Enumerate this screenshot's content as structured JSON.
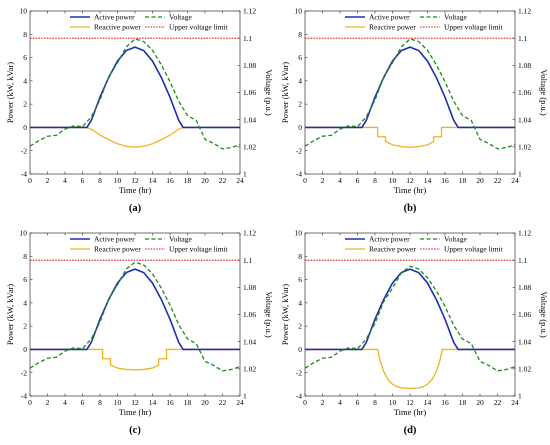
{
  "figure": {
    "panels": [
      {
        "caption": "(a)"
      },
      {
        "caption": "(b)"
      },
      {
        "caption": "(c)"
      },
      {
        "caption": "(d)"
      }
    ]
  },
  "colors": {
    "active": "#1f2fb0",
    "voltage": "#1d8a14",
    "reactive": "#f0b323",
    "limit": "#e01b1b"
  },
  "chart_data": [
    {
      "type": "line",
      "xlabel": "Time (hr)",
      "ylabel": "Power (kW, kVar)",
      "y2label": "Voltage (p.u.)",
      "xlim": [
        0,
        24
      ],
      "ylim": [
        -4,
        10
      ],
      "y2lim": [
        1.0,
        1.12
      ],
      "x_ticks": [
        "0",
        "2",
        "4",
        "6",
        "8",
        "10",
        "12",
        "14",
        "16",
        "18",
        "20",
        "22",
        "24"
      ],
      "y_ticks": [
        "-4",
        "-2",
        "0",
        "2",
        "4",
        "6",
        "8",
        "10"
      ],
      "y2_ticks": [
        "1",
        "1.02",
        "1.04",
        "1.06",
        "1.08",
        "1.1",
        "1.12"
      ],
      "legend": [
        "Active power",
        "Voltage",
        "Reactive power",
        "Upper voltage limit"
      ],
      "series": [
        {
          "name": "Active power",
          "axis": "left",
          "x": [
            0,
            6.5,
            7,
            8,
            9,
            10,
            11,
            12,
            13,
            14,
            15,
            16,
            17,
            17.5,
            24
          ],
          "y": [
            0,
            0,
            0.6,
            2.6,
            4.3,
            5.7,
            6.6,
            6.9,
            6.6,
            5.7,
            4.3,
            2.6,
            0.6,
            0,
            0
          ]
        },
        {
          "name": "Reactive power",
          "axis": "left",
          "x": [
            0,
            6.5,
            7,
            8,
            9,
            10,
            11,
            12,
            13,
            14,
            15,
            16,
            17,
            17.5,
            24
          ],
          "y": [
            0,
            0,
            -0.15,
            -0.65,
            -1.05,
            -1.4,
            -1.62,
            -1.7,
            -1.62,
            -1.4,
            -1.05,
            -0.65,
            -0.15,
            0,
            0
          ]
        },
        {
          "name": "Voltage",
          "axis": "right",
          "x": [
            0,
            1,
            2,
            3,
            4,
            5,
            6,
            7,
            8,
            9,
            10,
            11,
            12,
            13,
            14,
            15,
            16,
            17,
            18,
            19,
            20,
            21,
            22,
            23,
            24
          ],
          "y": [
            1.0205,
            1.0245,
            1.0278,
            1.0285,
            1.033,
            1.0355,
            1.0348,
            1.042,
            1.0545,
            1.0715,
            1.082,
            1.0935,
            1.0995,
            1.0975,
            1.091,
            1.0805,
            1.068,
            1.0535,
            1.043,
            1.0395,
            1.0255,
            1.0225,
            1.0185,
            1.0195,
            1.0215
          ]
        },
        {
          "name": "Upper voltage limit",
          "axis": "right",
          "x": [
            0,
            24
          ],
          "y": [
            1.1,
            1.1
          ]
        }
      ]
    },
    {
      "type": "line",
      "xlabel": "Time (hr)",
      "ylabel": "Power (kW, kVar)",
      "y2label": "Voltage (p.u.)",
      "xlim": [
        0,
        24
      ],
      "ylim": [
        -4,
        10
      ],
      "y2lim": [
        1.0,
        1.12
      ],
      "x_ticks": [
        "0",
        "2",
        "4",
        "6",
        "8",
        "10",
        "12",
        "14",
        "16",
        "18",
        "20",
        "22",
        "24"
      ],
      "y_ticks": [
        "-4",
        "-2",
        "0",
        "2",
        "4",
        "6",
        "8",
        "10"
      ],
      "y2_ticks": [
        "1",
        "1.02",
        "1.04",
        "1.06",
        "1.08",
        "1.1",
        "1.12"
      ],
      "legend": [
        "Active power",
        "Voltage",
        "Reactive power",
        "Upper voltage limit"
      ],
      "series": [
        {
          "name": "Active power",
          "axis": "left",
          "x": [
            0,
            6.5,
            7,
            8,
            9,
            10,
            11,
            12,
            13,
            14,
            15,
            16,
            17,
            17.5,
            24
          ],
          "y": [
            0,
            0,
            0.6,
            2.6,
            4.3,
            5.7,
            6.6,
            6.9,
            6.6,
            5.7,
            4.3,
            2.6,
            0.6,
            0,
            0
          ]
        },
        {
          "name": "Reactive power",
          "axis": "left",
          "x": [
            0,
            8.3,
            8.3,
            9.2,
            9.2,
            10,
            11,
            12,
            13,
            14,
            14.7,
            14.7,
            15.6,
            15.6,
            24
          ],
          "y": [
            0,
            0,
            -0.8,
            -0.8,
            -1.2,
            -1.5,
            -1.65,
            -1.7,
            -1.65,
            -1.5,
            -1.2,
            -0.8,
            -0.8,
            0,
            0
          ]
        },
        {
          "name": "Voltage",
          "axis": "right",
          "x": [
            0,
            1,
            2,
            3,
            4,
            5,
            6,
            7,
            8,
            9,
            10,
            11,
            12,
            13,
            14,
            15,
            16,
            17,
            18,
            19,
            20,
            21,
            22,
            23,
            24
          ],
          "y": [
            1.0205,
            1.0245,
            1.0278,
            1.0285,
            1.033,
            1.0355,
            1.0348,
            1.042,
            1.0545,
            1.0715,
            1.082,
            1.0935,
            1.0995,
            1.0975,
            1.091,
            1.0805,
            1.068,
            1.0535,
            1.043,
            1.0395,
            1.0255,
            1.0225,
            1.0185,
            1.0195,
            1.0215
          ]
        },
        {
          "name": "Upper voltage limit",
          "axis": "right",
          "x": [
            0,
            24
          ],
          "y": [
            1.1,
            1.1
          ]
        }
      ]
    },
    {
      "type": "line",
      "xlabel": "Time (hr)",
      "ylabel": "Power (kW, kVar)",
      "y2label": "Voltage (p.u.)",
      "xlim": [
        0,
        24
      ],
      "ylim": [
        -4,
        10
      ],
      "y2lim": [
        1.0,
        1.12
      ],
      "x_ticks": [
        "0",
        "2",
        "4",
        "6",
        "8",
        "10",
        "12",
        "14",
        "16",
        "18",
        "20",
        "22",
        "24"
      ],
      "y_ticks": [
        "-4",
        "-2",
        "0",
        "2",
        "4",
        "6",
        "8",
        "10"
      ],
      "y2_ticks": [
        "1",
        "1.02",
        "1.04",
        "1.06",
        "1.08",
        "1.1",
        "1.12"
      ],
      "legend": [
        "Active power",
        "Voltage",
        "Reactive power",
        "Upper voltage limit"
      ],
      "series": [
        {
          "name": "Active power",
          "axis": "left",
          "x": [
            0,
            6.5,
            7,
            8,
            9,
            10,
            11,
            12,
            13,
            14,
            15,
            16,
            17,
            17.5,
            24
          ],
          "y": [
            0,
            0,
            0.6,
            2.6,
            4.3,
            5.7,
            6.6,
            6.9,
            6.6,
            5.7,
            4.3,
            2.6,
            0.6,
            0,
            0
          ]
        },
        {
          "name": "Reactive power",
          "axis": "left",
          "x": [
            0,
            8.3,
            8.3,
            9.2,
            9.2,
            10,
            11,
            12,
            13,
            14,
            14.7,
            14.7,
            15.6,
            15.6,
            24
          ],
          "y": [
            0,
            0,
            -0.8,
            -0.8,
            -1.35,
            -1.6,
            -1.72,
            -1.75,
            -1.72,
            -1.6,
            -1.35,
            -0.8,
            -0.8,
            0,
            0
          ]
        },
        {
          "name": "Voltage",
          "axis": "right",
          "x": [
            0,
            1,
            2,
            3,
            4,
            5,
            6,
            7,
            8,
            9,
            10,
            11,
            12,
            13,
            14,
            15,
            16,
            17,
            18,
            19,
            20,
            21,
            22,
            23,
            24
          ],
          "y": [
            1.0205,
            1.0245,
            1.0278,
            1.0285,
            1.033,
            1.0355,
            1.0348,
            1.042,
            1.0545,
            1.0715,
            1.082,
            1.0935,
            1.0985,
            1.0965,
            1.09,
            1.0795,
            1.067,
            1.0525,
            1.042,
            1.0385,
            1.0255,
            1.0225,
            1.0185,
            1.0195,
            1.0215
          ]
        },
        {
          "name": "Upper voltage limit",
          "axis": "right",
          "x": [
            0,
            24
          ],
          "y": [
            1.1,
            1.1
          ]
        }
      ]
    },
    {
      "type": "line",
      "xlabel": "Time (hr)",
      "ylabel": "Power (kW, kVar)",
      "y2label": "Voltage (p.u.)",
      "xlim": [
        0,
        24
      ],
      "ylim": [
        -4,
        10
      ],
      "y2lim": [
        1.0,
        1.12
      ],
      "x_ticks": [
        "0",
        "2",
        "4",
        "6",
        "8",
        "10",
        "12",
        "14",
        "16",
        "18",
        "20",
        "22",
        "24"
      ],
      "y_ticks": [
        "-4",
        "-2",
        "0",
        "2",
        "4",
        "6",
        "8",
        "10"
      ],
      "y2_ticks": [
        "1",
        "1.02",
        "1.04",
        "1.06",
        "1.08",
        "1.1",
        "1.12"
      ],
      "legend": [
        "Active power",
        "Voltage",
        "Reactive power",
        "Upper voltage limit"
      ],
      "series": [
        {
          "name": "Active power",
          "axis": "left",
          "x": [
            0,
            6.5,
            7,
            8,
            9,
            10,
            11,
            12,
            13,
            14,
            15,
            16,
            17,
            17.5,
            24
          ],
          "y": [
            0,
            0,
            0.6,
            2.6,
            4.3,
            5.7,
            6.6,
            6.9,
            6.6,
            5.7,
            4.3,
            2.6,
            0.6,
            0,
            0
          ]
        },
        {
          "name": "Reactive power",
          "axis": "left",
          "x": [
            0,
            8.3,
            8.6,
            9,
            9.5,
            10,
            10.5,
            11,
            12,
            13,
            13.5,
            14,
            14.5,
            15,
            15.4,
            15.7,
            24
          ],
          "y": [
            0,
            0,
            -1.0,
            -1.9,
            -2.6,
            -3.0,
            -3.2,
            -3.3,
            -3.35,
            -3.3,
            -3.2,
            -3.0,
            -2.6,
            -1.9,
            -1.0,
            0,
            0
          ]
        },
        {
          "name": "Voltage",
          "axis": "right",
          "x": [
            0,
            1,
            2,
            3,
            4,
            5,
            6,
            7,
            8,
            9,
            10,
            11,
            12,
            13,
            14,
            15,
            16,
            17,
            18,
            19,
            20,
            21,
            22,
            23,
            24
          ],
          "y": [
            1.0205,
            1.0245,
            1.0278,
            1.0285,
            1.033,
            1.0355,
            1.0348,
            1.042,
            1.0535,
            1.0695,
            1.0795,
            1.0905,
            1.0955,
            1.0935,
            1.087,
            1.0775,
            1.066,
            1.052,
            1.042,
            1.0385,
            1.0255,
            1.0225,
            1.0185,
            1.0195,
            1.0215
          ]
        },
        {
          "name": "Upper voltage limit",
          "axis": "right",
          "x": [
            0,
            24
          ],
          "y": [
            1.1,
            1.1
          ]
        }
      ]
    }
  ]
}
